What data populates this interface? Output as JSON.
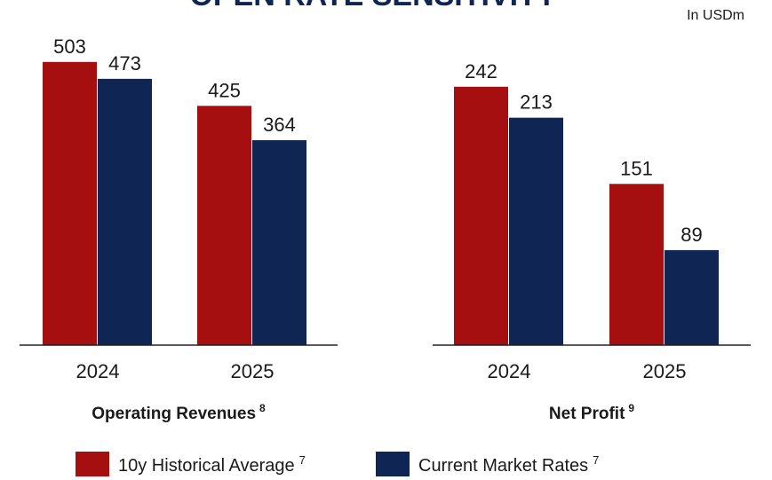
{
  "title": "OPEN RATE SENSITIVITY",
  "unit_note": "In USDm",
  "legend": [
    {
      "name": "10y Historical Average",
      "footnote": "7",
      "color": "#a50f0f"
    },
    {
      "name": "Current Market Rates",
      "footnote": "7",
      "color": "#0f2553"
    }
  ],
  "chart_data": [
    {
      "type": "bar",
      "title": "Operating Revenues",
      "footnote": "8",
      "categories": [
        "2024",
        "2025"
      ],
      "ylim": [
        0,
        550
      ],
      "series": [
        {
          "name": "10y Historical Average",
          "color": "#a50f0f",
          "values": [
            503,
            425
          ]
        },
        {
          "name": "Current Market Rates",
          "color": "#0f2553",
          "values": [
            473,
            364
          ]
        }
      ]
    },
    {
      "type": "bar",
      "title": "Net Profit",
      "footnote": "9",
      "categories": [
        "2024",
        "2025"
      ],
      "ylim": [
        0,
        290
      ],
      "series": [
        {
          "name": "10y Historical Average",
          "color": "#a50f0f",
          "values": [
            242,
            151
          ]
        },
        {
          "name": "Current Market Rates",
          "color": "#0f2553",
          "values": [
            213,
            89
          ]
        }
      ]
    }
  ]
}
